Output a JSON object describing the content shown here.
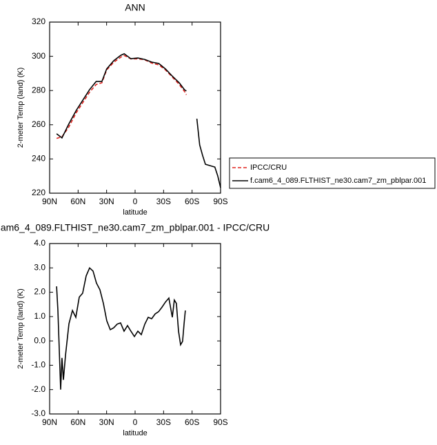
{
  "chart_data": [
    {
      "type": "line",
      "title": "ANN",
      "x_label": "latitude",
      "y_label": "2-meter Temp (land) (K)",
      "xlim": [
        90,
        -90
      ],
      "xticks": [
        {
          "value": 90,
          "label": "90N"
        },
        {
          "value": 60,
          "label": "60N"
        },
        {
          "value": 30,
          "label": "30N"
        },
        0,
        {
          "value": -30,
          "label": "30S"
        },
        {
          "value": -60,
          "label": "60S"
        },
        {
          "value": -90,
          "label": "90S"
        }
      ],
      "ylim": [
        220,
        320
      ],
      "yticks": [
        220,
        240,
        260,
        280,
        300,
        320
      ],
      "x": [
        82.7,
        77,
        70,
        62,
        55,
        48,
        41,
        35,
        30,
        22.5,
        15,
        11.5,
        4.5,
        -3,
        -10,
        -17.5,
        -25,
        -32,
        -39,
        -46.5,
        -52,
        -54,
        -60,
        -65,
        -68,
        -71,
        -74,
        -79,
        -84,
        -87,
        -90
      ],
      "series": [
        {
          "name": "IPCC/CRU",
          "color": "#e0201b",
          "dash": true,
          "values": [
            252,
            253,
            258.5,
            267,
            273,
            279,
            283.5,
            284.5,
            292,
            296.5,
            299.5,
            300.5,
            298.5,
            298.5,
            298,
            296,
            295,
            292,
            288,
            283.5,
            279.5,
            277.5,
            null,
            null,
            null,
            null,
            null,
            null,
            null,
            null,
            null
          ]
        },
        {
          "name": "f.cam6_4_089.FLTHIST_ne30.cam7_zm_pblpar.001",
          "color": "#000000",
          "dash": false,
          "values": [
            254.7,
            252.3,
            260.3,
            268.4,
            274.4,
            280.5,
            285.3,
            285.3,
            292.6,
            297.4,
            300.6,
            301.5,
            298.6,
            299,
            298.2,
            296.6,
            295.8,
            292.6,
            288.5,
            284.5,
            280.5,
            279.7,
            null,
            263.5,
            248.2,
            242.2,
            236.9,
            236.1,
            235.3,
            230.1,
            223.2
          ]
        }
      ]
    },
    {
      "type": "line",
      "title": "am6_4_089.FLTHIST_ne30.cam7_zm_pblpar.001 - IPCC/CRU",
      "x_label": "latitude",
      "y_label": "2-meter Temp (land) (K)",
      "xlim": [
        90,
        -90
      ],
      "xticks": [
        {
          "value": 90,
          "label": "90N"
        },
        {
          "value": 60,
          "label": "60N"
        },
        {
          "value": 30,
          "label": "30N"
        },
        0,
        {
          "value": -30,
          "label": "30S"
        },
        {
          "value": -60,
          "label": "60S"
        },
        {
          "value": -90,
          "label": "90S"
        }
      ],
      "ylim": [
        -3,
        4
      ],
      "yticks": [
        {
          "value": -3,
          "label": "-3.0"
        },
        {
          "value": -2,
          "label": "-2.0"
        },
        {
          "value": -1,
          "label": "-1.0"
        },
        {
          "value": 0,
          "label": "0.0"
        },
        {
          "value": 1,
          "label": "1.0"
        },
        {
          "value": 2,
          "label": "2.0"
        },
        {
          "value": 3,
          "label": "3.0"
        },
        {
          "value": 4,
          "label": "4.0"
        }
      ],
      "x": [
        82.7,
        81.3,
        79.8,
        78.4,
        77,
        75.5,
        73.3,
        69.7,
        66,
        62.4,
        58.8,
        55.2,
        51.5,
        47.9,
        44.3,
        40.7,
        37,
        33.4,
        29.8,
        26.1,
        22.5,
        18.9,
        15.3,
        11.6,
        8,
        4.4,
        0.7,
        -2.9,
        -6.5,
        -10.2,
        -13.8,
        -17.4,
        -21.1,
        -24.7,
        -28.4,
        -32,
        -35.6,
        -39.2,
        -41.3,
        -43.5,
        -45.7,
        -47.9,
        -50,
        -51.5,
        -52.9
      ],
      "series": [
        {
          "color": "#000000",
          "dash": false,
          "values": [
            2.24,
            1.25,
            -0.45,
            -2.0,
            -0.7,
            -1.6,
            -0.6,
            0.7,
            1.25,
            0.97,
            1.8,
            1.96,
            2.67,
            3.0,
            2.87,
            2.38,
            2.1,
            1.54,
            0.83,
            0.46,
            0.54,
            0.69,
            0.74,
            0.4,
            0.63,
            0.4,
            0.18,
            0.4,
            0.26,
            0.69,
            0.97,
            0.91,
            1.11,
            1.2,
            1.39,
            1.6,
            1.76,
            0.97,
            1.68,
            1.54,
            0.4,
            -0.16,
            -0.02,
            0.69,
            1.25
          ]
        }
      ]
    }
  ]
}
